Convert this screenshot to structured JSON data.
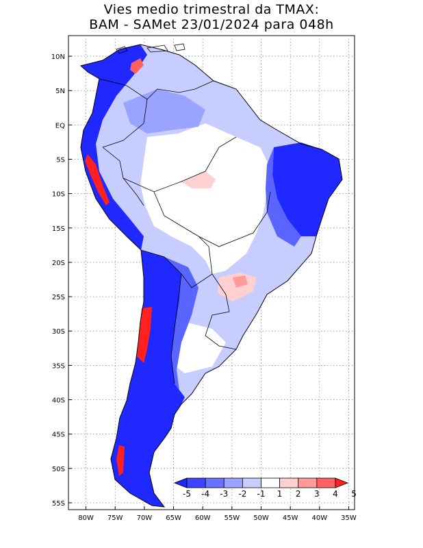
{
  "title": {
    "line1": "Vies medio trimestral da TMAX:",
    "line2": "BAM - SAMet 23/01/2024  para 048h"
  },
  "map": {
    "lat_labels": [
      "10N",
      "5N",
      "EQ",
      "5S",
      "10S",
      "15S",
      "20S",
      "25S",
      "30S",
      "35S",
      "40S",
      "45S",
      "50S",
      "55S"
    ],
    "lon_labels": [
      "80W",
      "75W",
      "70W",
      "65W",
      "60W",
      "55W",
      "50W",
      "45W",
      "40W",
      "35W"
    ],
    "extent": {
      "lon_min": -83,
      "lon_max": -34,
      "lat_min": -56,
      "lat_max": 13
    },
    "colors": {
      "blue_strong": "#1e28ff",
      "blue_mid": "#5a64ff",
      "blue_light": "#9aa3ff",
      "blue_pale": "#c8cdff",
      "white": "#ffffff",
      "red_pale": "#ffd0d0",
      "red_light": "#ff9a9a",
      "red_strong": "#ff2020"
    }
  },
  "colorbar": {
    "labels": [
      "-5",
      "-4",
      "-3",
      "-2",
      "-1",
      "1",
      "2",
      "3",
      "4",
      "5"
    ],
    "bins": [
      {
        "color": "#1e28ff"
      },
      {
        "color": "#3c46ff"
      },
      {
        "color": "#6a73ff"
      },
      {
        "color": "#9aa3ff"
      },
      {
        "color": "#c8cdff"
      },
      {
        "color": "#ffffff"
      },
      {
        "color": "#ffd0d0"
      },
      {
        "color": "#ff9a9a"
      },
      {
        "color": "#ff6060"
      },
      {
        "color": "#ff2020"
      }
    ]
  }
}
